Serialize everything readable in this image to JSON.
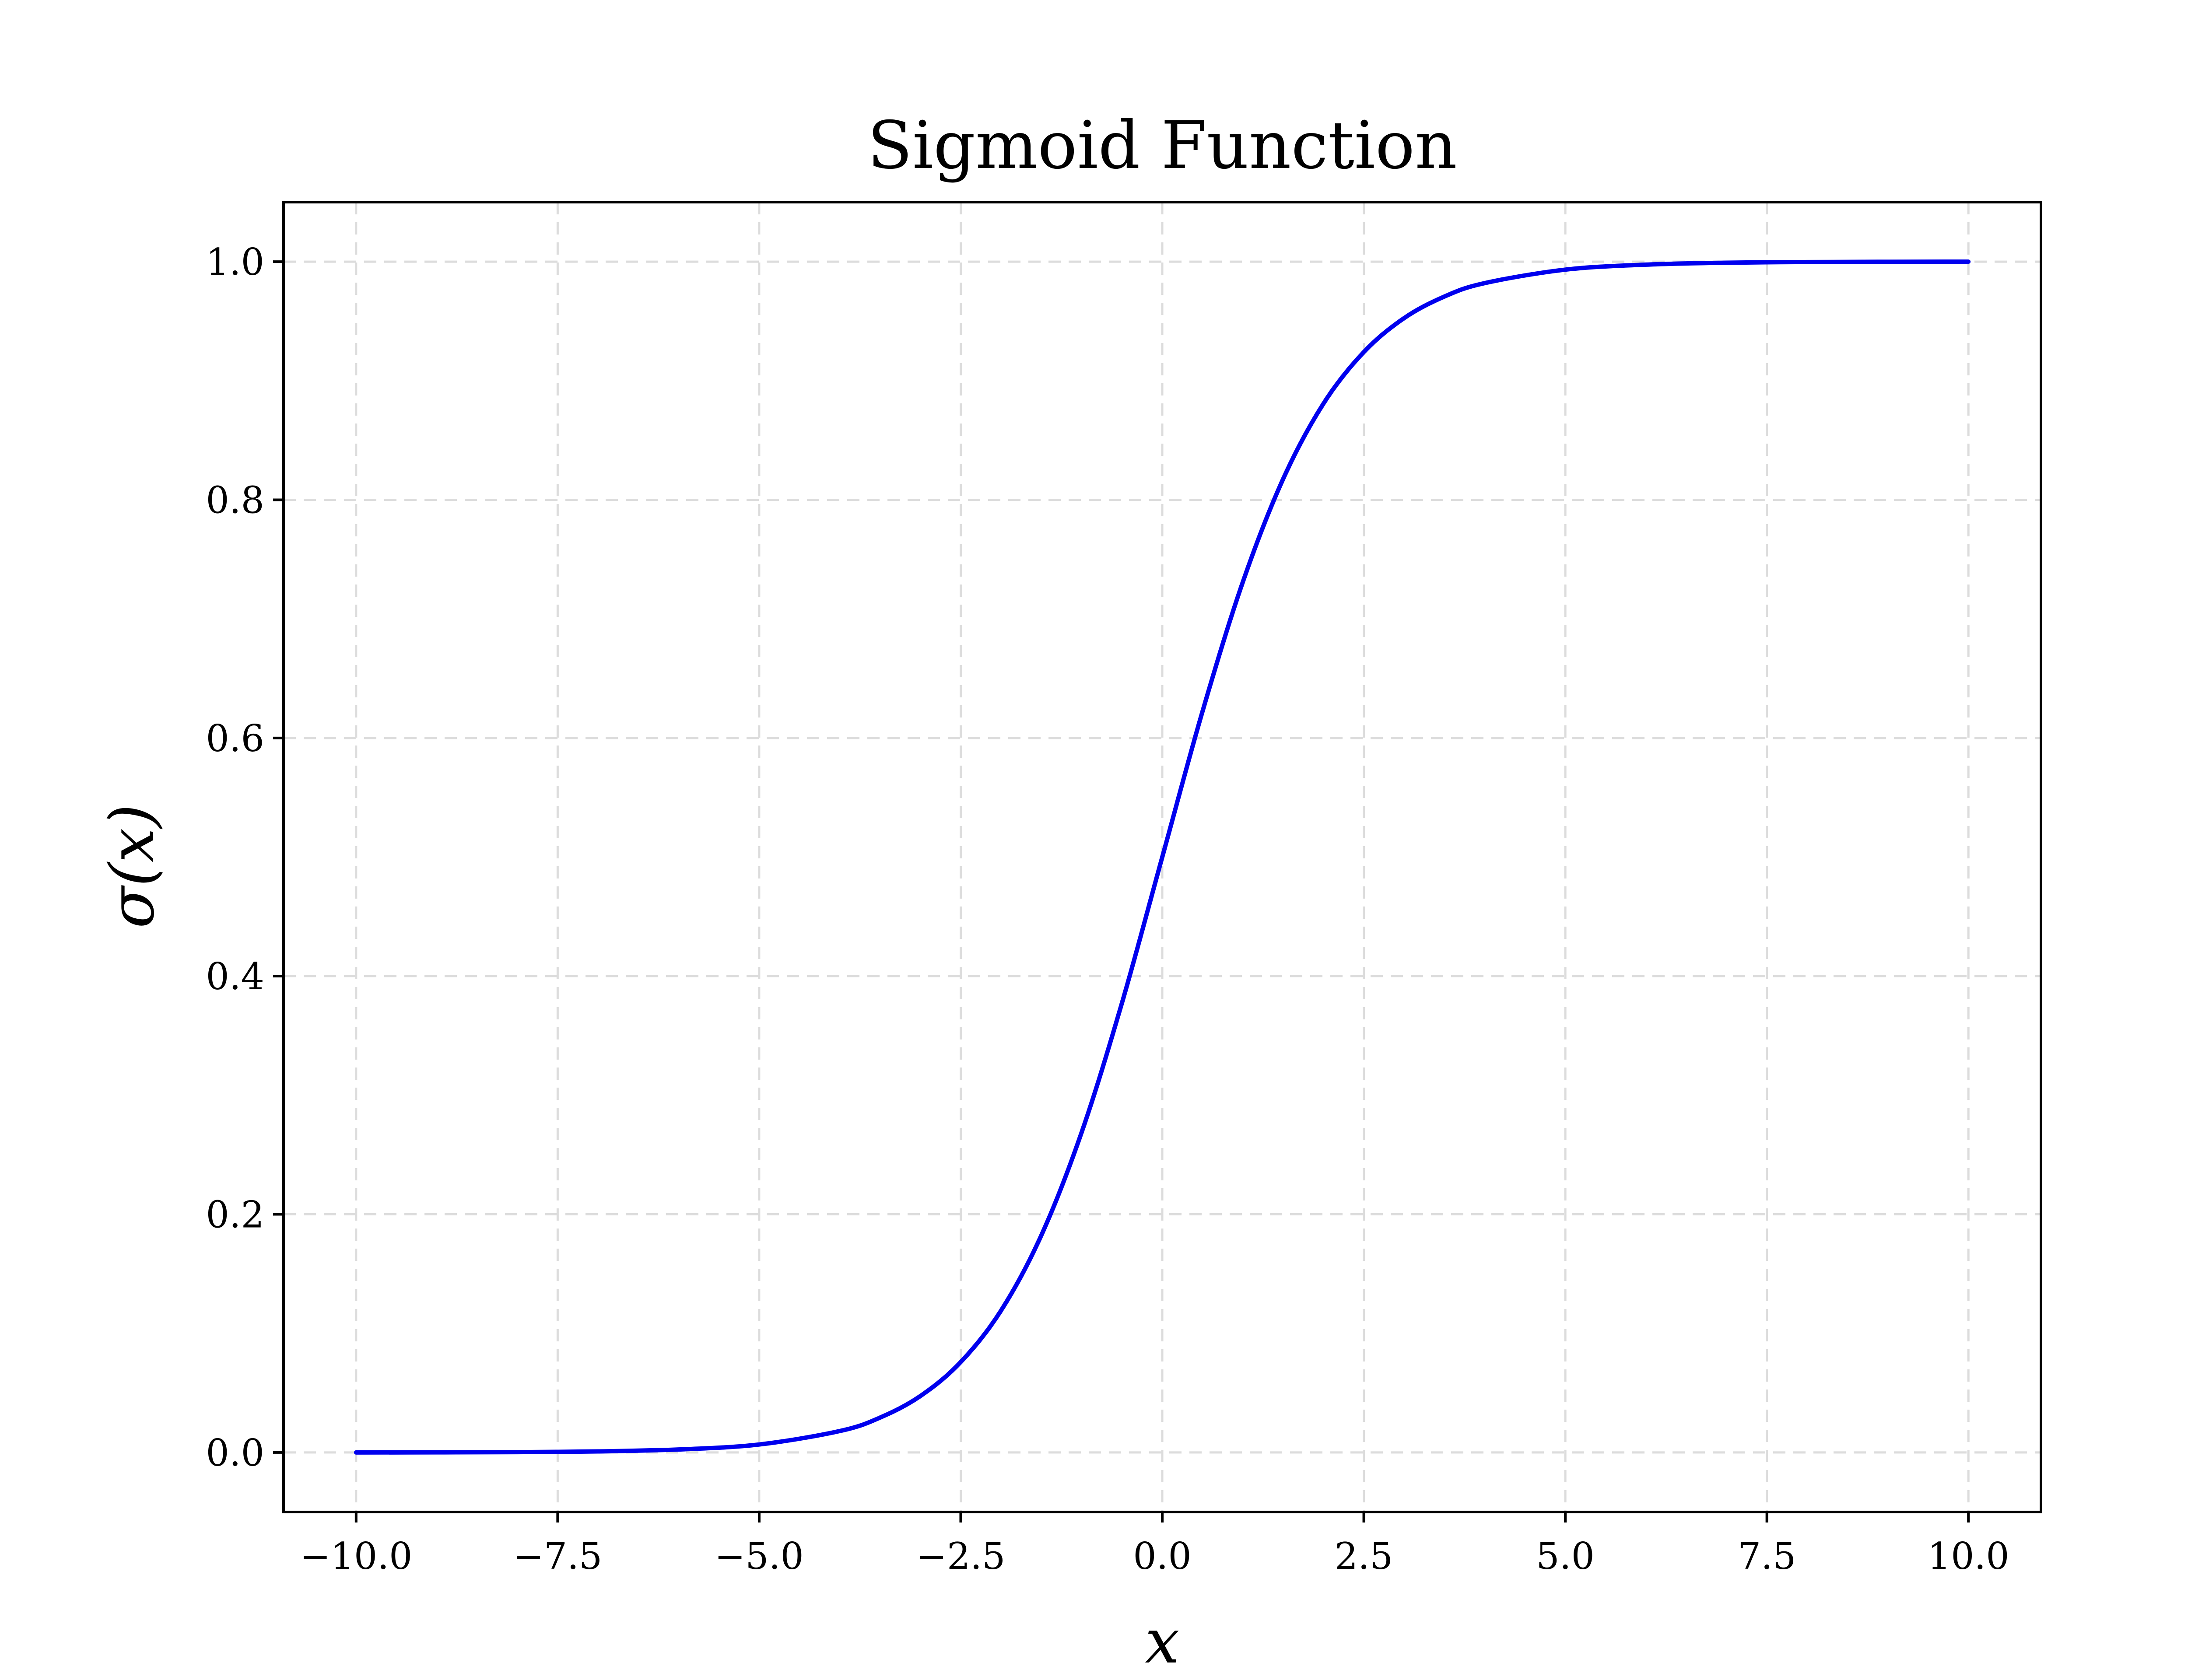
{
  "chart_data": {
    "type": "line",
    "title": "Sigmoid Function",
    "xlabel": "x",
    "ylabel": "σ(x)",
    "xlim": [
      -10.9,
      10.9
    ],
    "ylim": [
      -0.05,
      1.05
    ],
    "xticks": [
      -10.0,
      -7.5,
      -5.0,
      -2.5,
      0.0,
      2.5,
      5.0,
      7.5,
      10.0
    ],
    "xtick_labels": [
      "−10.0",
      "−7.5",
      "−5.0",
      "−2.5",
      "0.0",
      "2.5",
      "5.0",
      "7.5",
      "10.0"
    ],
    "yticks": [
      0.0,
      0.2,
      0.4,
      0.6,
      0.8,
      1.0
    ],
    "ytick_labels": [
      "0.0",
      "0.2",
      "0.4",
      "0.6",
      "0.8",
      "1.0"
    ],
    "grid": true,
    "legend": "none",
    "series": [
      {
        "color": "#0000ee",
        "x": [
          -10,
          -9,
          -8,
          -7,
          -6,
          -5,
          -4,
          -3.5,
          -3,
          -2.5,
          -2,
          -1.5,
          -1,
          -0.5,
          0,
          0.5,
          1,
          1.5,
          2,
          2.5,
          3,
          3.5,
          4,
          5,
          6,
          7,
          8,
          9,
          10
        ],
        "y": [
          0.0,
          0.0001,
          0.0003,
          0.0009,
          0.0025,
          0.0067,
          0.018,
          0.0293,
          0.0474,
          0.0759,
          0.1192,
          0.1824,
          0.2689,
          0.3775,
          0.5,
          0.6225,
          0.7311,
          0.8176,
          0.8808,
          0.9241,
          0.9526,
          0.9707,
          0.982,
          0.9933,
          0.9975,
          0.9991,
          0.9997,
          0.9999,
          1.0
        ]
      }
    ]
  }
}
